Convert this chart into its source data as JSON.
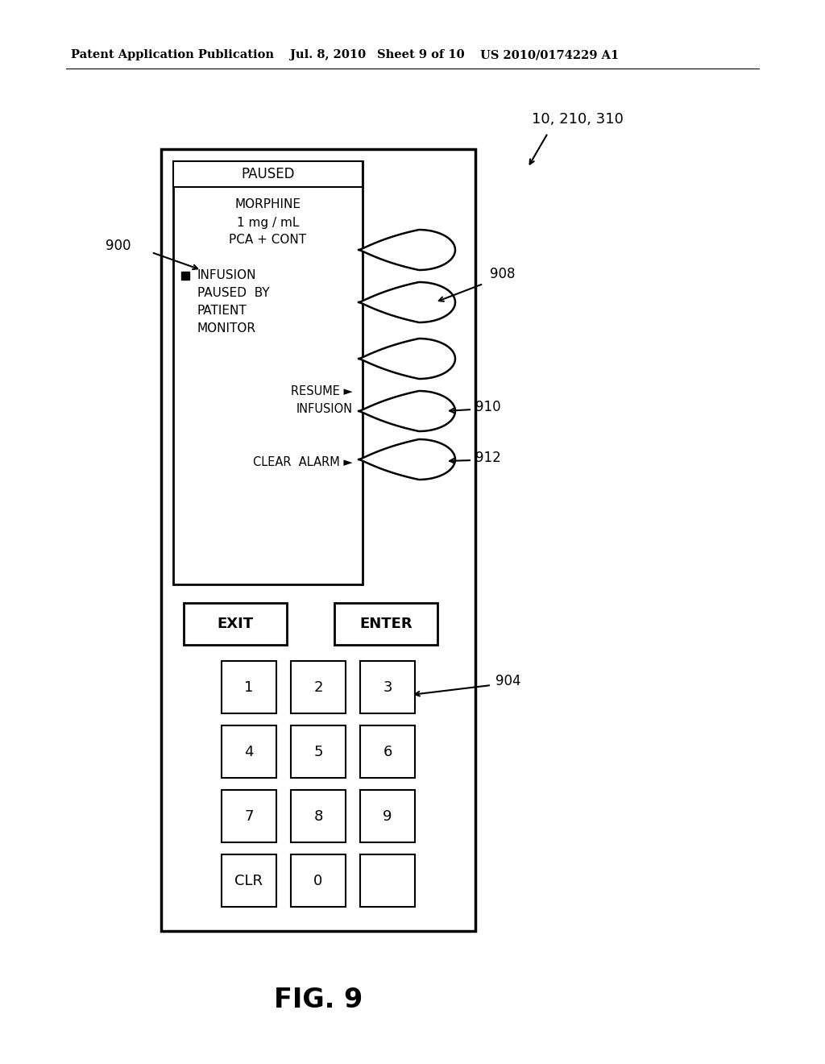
{
  "bg_color": "#ffffff",
  "header_text1": "Patent Application Publication",
  "header_text2": "Jul. 8, 2010",
  "header_text3": "Sheet 9 of 10",
  "header_text4": "US 2010/0174229 A1",
  "fig_label": "FIG. 9",
  "ref_label_top": "10, 210, 310",
  "ref_900": "900",
  "ref_904": "904",
  "ref_908": "908",
  "ref_910": "910",
  "ref_912": "912",
  "display_title": "PAUSED",
  "display_line1": "MORPHINE",
  "display_line2": "1 mg / mL",
  "display_line3": "PCA + CONT",
  "infusion_icon": "■",
  "infusion_text1": "INFUSION",
  "infusion_text2": "PAUSED  BY",
  "infusion_text3": "PATIENT",
  "infusion_text4": "MONITOR",
  "resume_text1": "RESUME ►",
  "resume_text2": "INFUSION",
  "clear_text": "CLEAR  ALARM ►",
  "btn_exit": "EXIT",
  "btn_enter": "ENTER",
  "keypad": [
    "1",
    "2",
    "3",
    "4",
    "5",
    "6",
    "7",
    "8",
    "9",
    "CLR",
    "0",
    ""
  ]
}
